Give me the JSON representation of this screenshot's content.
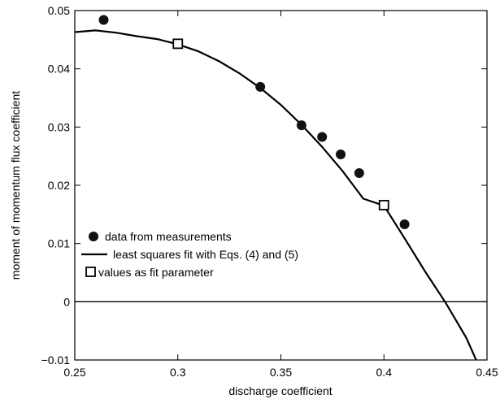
{
  "chart_data": {
    "type": "scatter",
    "xlabel": "discharge coefficient",
    "ylabel": "moment of momentum flux coefficient",
    "xlim": [
      0.25,
      0.45
    ],
    "ylim": [
      -0.01,
      0.05
    ],
    "x_ticks": [
      0.25,
      0.3,
      0.35,
      0.4,
      0.45
    ],
    "x_tick_labels": [
      "0.25",
      "0.3",
      "0.35",
      "0.4",
      "0.45"
    ],
    "y_ticks": [
      -0.01,
      0,
      0.01,
      0.02,
      0.03,
      0.04,
      0.05
    ],
    "y_tick_labels": [
      "−0.01",
      "0",
      "0.01",
      "0.02",
      "0.03",
      "0.04",
      "0.05"
    ],
    "grid": false,
    "reference_line_y": 0,
    "legend_position": "center-left",
    "series": [
      {
        "name": "data from measurements",
        "kind": "scatter",
        "marker": "filled-circle",
        "points": [
          {
            "x": 0.264,
            "y": 0.0484
          },
          {
            "x": 0.34,
            "y": 0.0369
          },
          {
            "x": 0.36,
            "y": 0.0303
          },
          {
            "x": 0.37,
            "y": 0.0283
          },
          {
            "x": 0.379,
            "y": 0.0253
          },
          {
            "x": 0.388,
            "y": 0.0221
          },
          {
            "x": 0.41,
            "y": 0.0133
          }
        ]
      },
      {
        "name": "least squares fit with Eqs. (4) and (5)",
        "kind": "line",
        "points": [
          {
            "x": 0.25,
            "y": 0.0463
          },
          {
            "x": 0.26,
            "y": 0.0466
          },
          {
            "x": 0.27,
            "y": 0.0462
          },
          {
            "x": 0.28,
            "y": 0.0456
          },
          {
            "x": 0.29,
            "y": 0.0451
          },
          {
            "x": 0.3,
            "y": 0.0442
          },
          {
            "x": 0.31,
            "y": 0.043
          },
          {
            "x": 0.32,
            "y": 0.0413
          },
          {
            "x": 0.33,
            "y": 0.0392
          },
          {
            "x": 0.34,
            "y": 0.0367
          },
          {
            "x": 0.35,
            "y": 0.0338
          },
          {
            "x": 0.36,
            "y": 0.0304
          },
          {
            "x": 0.37,
            "y": 0.0266
          },
          {
            "x": 0.38,
            "y": 0.0224
          },
          {
            "x": 0.39,
            "y": 0.0177
          },
          {
            "x": 0.4,
            "y": 0.0165
          },
          {
            "x": 0.41,
            "y": 0.0109
          },
          {
            "x": 0.42,
            "y": 0.0052
          },
          {
            "x": 0.43,
            "y": -0.0002
          },
          {
            "x": 0.44,
            "y": -0.0062
          },
          {
            "x": 0.445,
            "y": -0.0102
          }
        ]
      },
      {
        "name": "values as fit parameter",
        "kind": "scatter",
        "marker": "open-square",
        "points": [
          {
            "x": 0.3,
            "y": 0.0443
          },
          {
            "x": 0.4,
            "y": 0.0166
          }
        ]
      }
    ]
  }
}
